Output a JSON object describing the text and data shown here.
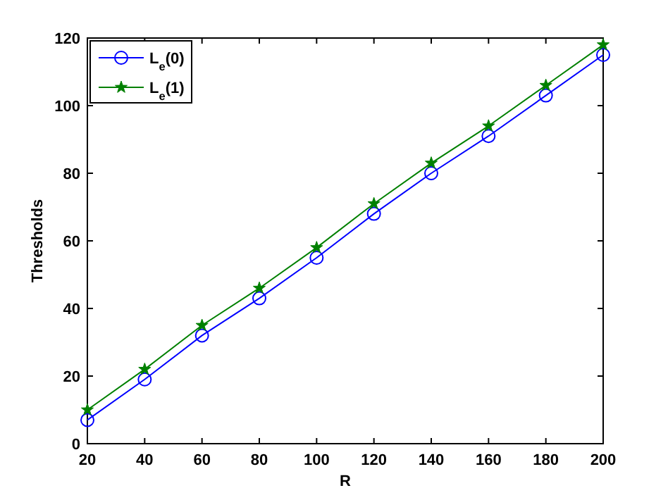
{
  "chart_data": {
    "type": "line",
    "xlabel": "R",
    "ylabel": "Thresholds",
    "x": [
      20,
      40,
      60,
      80,
      100,
      120,
      140,
      160,
      180,
      200
    ],
    "xlim": [
      20,
      200
    ],
    "xticks": [
      20,
      40,
      60,
      80,
      100,
      120,
      140,
      160,
      180,
      200
    ],
    "ylim": [
      0,
      120
    ],
    "yticks": [
      0,
      20,
      40,
      60,
      80,
      100,
      120
    ],
    "legend": "top left",
    "grid": false,
    "series": [
      {
        "name": "L$_{e}$(0)",
        "color": "#0000ff",
        "marker": "circle",
        "values": [
          7,
          19,
          32,
          43,
          55,
          68,
          80,
          91,
          103,
          115
        ]
      },
      {
        "name": "L$_{e}$(1)",
        "color": "#008000",
        "marker": "star",
        "values": [
          10,
          22,
          35,
          46,
          58,
          71,
          83,
          94,
          106,
          118
        ]
      }
    ]
  }
}
